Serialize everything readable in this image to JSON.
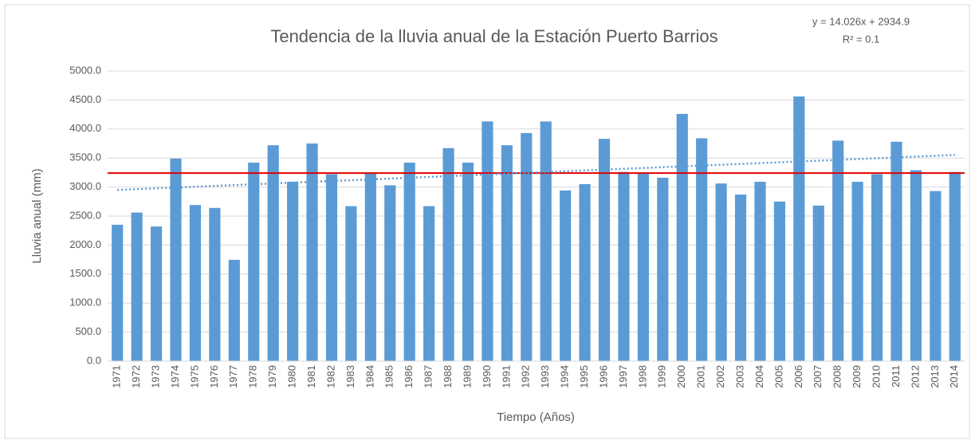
{
  "chart_data": {
    "type": "bar",
    "title": "Tendencia de la lluvia anual de la Estación Puerto Barrios",
    "y_label": "Lluvia anual (mm)",
    "x_label": "Tiempo (Años)",
    "categories": [
      "1971",
      "1972",
      "1973",
      "1974",
      "1975",
      "1976",
      "1977",
      "1978",
      "1979",
      "1980",
      "1981",
      "1982",
      "1983",
      "1984",
      "1985",
      "1986",
      "1987",
      "1988",
      "1989",
      "1990",
      "1991",
      "1992",
      "1993",
      "1994",
      "1995",
      "1996",
      "1997",
      "1998",
      "1999",
      "2000",
      "2001",
      "2002",
      "2003",
      "2004",
      "2005",
      "2006",
      "2007",
      "2008",
      "2009",
      "2010",
      "2011",
      "2012",
      "2013",
      "2014"
    ],
    "values": [
      2350,
      2560,
      2320,
      3490,
      2690,
      2640,
      1745,
      3420,
      3720,
      3090,
      3750,
      3220,
      2670,
      3250,
      3030,
      3420,
      2670,
      3670,
      3420,
      4130,
      3720,
      3930,
      4130,
      2940,
      3050,
      3830,
      3260,
      3230,
      3160,
      4260,
      3840,
      3060,
      2870,
      3090,
      2750,
      4560,
      2680,
      3800,
      3090,
      3220,
      3780,
      3290,
      2930,
      3260
    ],
    "color": "#5b9bd5",
    "mean_line": {
      "value": 3240,
      "color": "#e00000"
    },
    "trendline": {
      "equation": "y = 14.026x + 2934.9",
      "r2": "R² = 0.1",
      "slope": 14.026,
      "intercept": 2934.9,
      "color": "#5b9bd5"
    },
    "ylim": [
      0,
      5000
    ],
    "yticks": [
      {
        "value": 0,
        "label": "0.0"
      },
      {
        "value": 500,
        "label": "500.0"
      },
      {
        "value": 1000,
        "label": "1000.0"
      },
      {
        "value": 1500,
        "label": "1500.0"
      },
      {
        "value": 2000,
        "label": "2000.0"
      },
      {
        "value": 2500,
        "label": "2500.0"
      },
      {
        "value": 3000,
        "label": "3000.0"
      },
      {
        "value": 3500,
        "label": "3500.0"
      },
      {
        "value": 4000,
        "label": "4000.0"
      },
      {
        "value": 4500,
        "label": "4500.0"
      },
      {
        "value": 5000,
        "label": "5000.0"
      }
    ],
    "grid": true
  }
}
